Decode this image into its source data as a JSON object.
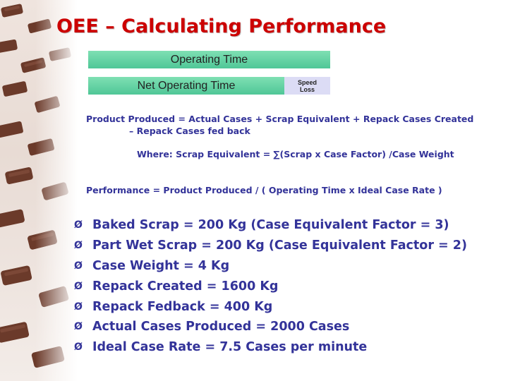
{
  "slide": {
    "title": "OEE – Calculating Performance"
  },
  "diagram": {
    "operating_time_label": "Operating Time",
    "net_operating_time_label": "Net Operating Time",
    "speed_loss_line1": "Speed",
    "speed_loss_line2": "Loss"
  },
  "formulas": {
    "product_produced_line1": "Product Produced = Actual Cases + Scrap Equivalent + Repack Cases Created",
    "product_produced_line2": "– Repack Cases fed back",
    "scrap_equivalent": "Where: Scrap Equivalent = ∑(Scrap x Case Factor) /Case Weight",
    "performance": "Performance = Product Produced / ( Operating Time x Ideal Case Rate )"
  },
  "bullet_glyph": "Ø",
  "bullets": [
    "Baked Scrap = 200 Kg (Case Equivalent Factor = 3)",
    "Part Wet Scrap = 200 Kg (Case Equivalent Factor = 2)",
    "Case Weight = 4 Kg",
    "Repack Created = 1600 Kg",
    "Repack Fedback = 400 Kg",
    "Actual Cases Produced = 2000 Cases",
    "Ideal Case Rate = 7.5 Cases per minute"
  ],
  "colors": {
    "title": "#cc0000",
    "body_text": "#333399",
    "time_bar": "#5fd3a3",
    "speed_loss_box": "#dcdcf5"
  }
}
